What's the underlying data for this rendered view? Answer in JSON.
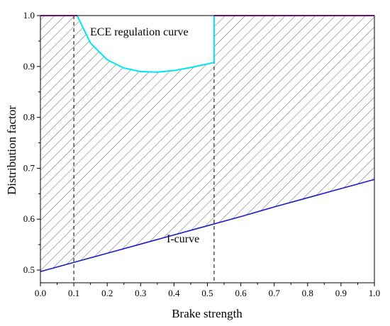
{
  "chart_data": {
    "type": "line",
    "xlabel": "Brake strength",
    "ylabel": "Distribution factor",
    "xlim": [
      0.0,
      1.0
    ],
    "ylim": [
      0.475,
      1.0
    ],
    "xticks": [
      "0.0",
      "0.1",
      "0.2",
      "0.3",
      "0.4",
      "0.5",
      "0.6",
      "0.7",
      "0.8",
      "0.9",
      "1.0"
    ],
    "yticks": [
      "0.5",
      "0.6",
      "0.7",
      "0.8",
      "0.9",
      "1.0"
    ],
    "grid": false,
    "annotations": [
      "ECE regulation curve",
      "I-curve"
    ],
    "series": [
      {
        "color": "#1c1cc8",
        "x": [
          0.0,
          0.1,
          0.2,
          0.3,
          0.4,
          0.5,
          0.6,
          0.7,
          0.8,
          0.9,
          1.0
        ],
        "y": [
          0.497,
          0.515,
          0.533,
          0.551,
          0.569,
          0.587,
          0.605,
          0.624,
          0.642,
          0.66,
          0.678
        ]
      },
      {
        "color": "#00e5ee",
        "x": [
          0.11,
          0.15,
          0.2,
          0.25,
          0.3,
          0.35,
          0.4,
          0.45,
          0.5,
          0.52,
          0.52
        ],
        "y": [
          1.0,
          0.946,
          0.913,
          0.897,
          0.89,
          0.889,
          0.892,
          0.898,
          0.905,
          0.908,
          1.0
        ]
      },
      {
        "color": "#e020e0",
        "x": [
          0.0,
          0.11
        ],
        "y": [
          1.0,
          1.0
        ]
      },
      {
        "color": "#e020e0",
        "x": [
          0.52,
          1.0
        ],
        "y": [
          1.0,
          1.0
        ]
      }
    ],
    "reference_lines": [
      {
        "x": 0.1,
        "style": "dashed",
        "color": "#000000"
      },
      {
        "x": 0.52,
        "style": "dashed",
        "color": "#000000"
      }
    ],
    "shaded_region": {
      "between": "I-curve and upper bound (1.0 / ECE regulation curve)",
      "pattern": "diagonal hatch",
      "color": "#555555"
    }
  }
}
